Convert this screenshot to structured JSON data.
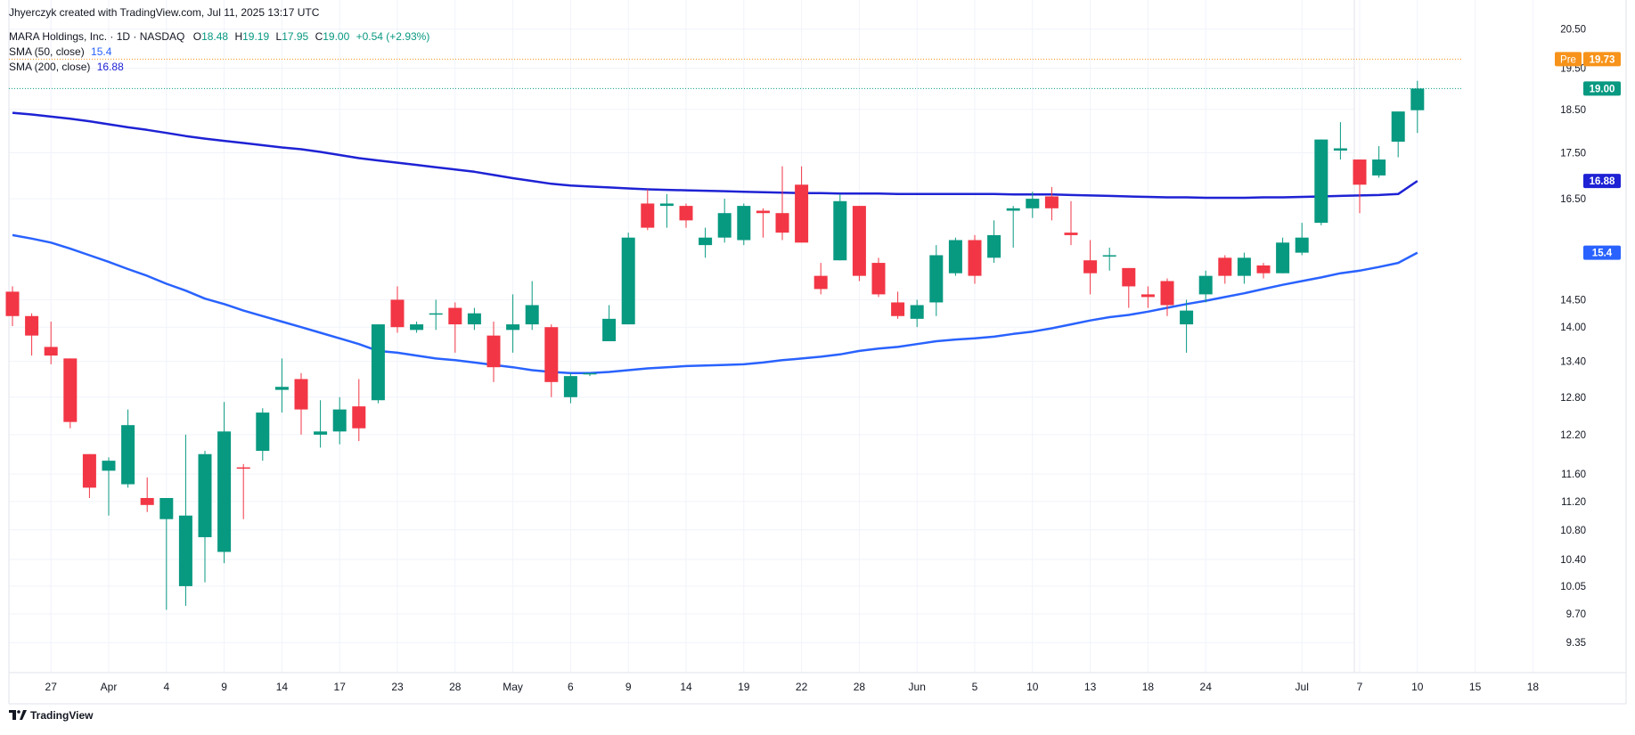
{
  "created_by": "Jhyerczyk created with TradingView.com, Jul 11, 2025 13:17 UTC",
  "footer_brand": "TradingView",
  "colors": {
    "up": "#089981",
    "down": "#f23645",
    "sma50": "#2962ff",
    "sma200": "#1e22d4",
    "pre": "#f7931a",
    "grid": "#f0f3fa",
    "axis_text": "#131722"
  },
  "legend": {
    "symbol_label": "MARA Holdings, Inc. · 1D · NASDAQ",
    "o_label": "O",
    "o_value": "18.48",
    "h_label": "H",
    "h_value": "19.19",
    "l_label": "L",
    "l_value": "17.95",
    "c_label": "C",
    "c_value": "19.00",
    "change": "+0.54 (+2.93%)",
    "sma50_label": "SMA (50, close)",
    "sma50_value": "15.4",
    "sma200_label": "SMA (200, close)",
    "sma200_value": "16.88"
  },
  "badges": {
    "pre_label": "Pre",
    "pre_value": "19.73",
    "last_price": "19.00",
    "sma200": "16.88",
    "sma50": "15.4"
  },
  "chart_data": {
    "type": "candlestick",
    "y_axis_scale": "log",
    "ylim": [
      9.1,
      20.8
    ],
    "y_ticks": [
      "20.50",
      "19.50",
      "18.50",
      "17.50",
      "16.50",
      "14.50",
      "14.00",
      "13.40",
      "12.80",
      "12.20",
      "11.60",
      "11.20",
      "10.80",
      "10.40",
      "10.05",
      "9.70",
      "9.35"
    ],
    "x_ticks": [
      {
        "label": "27",
        "idx": 2
      },
      {
        "label": "Apr",
        "idx": 5
      },
      {
        "label": "4",
        "idx": 8
      },
      {
        "label": "9",
        "idx": 11
      },
      {
        "label": "14",
        "idx": 14
      },
      {
        "label": "17",
        "idx": 17
      },
      {
        "label": "23",
        "idx": 20
      },
      {
        "label": "28",
        "idx": 23
      },
      {
        "label": "May",
        "idx": 26
      },
      {
        "label": "6",
        "idx": 29
      },
      {
        "label": "9",
        "idx": 32
      },
      {
        "label": "14",
        "idx": 35
      },
      {
        "label": "19",
        "idx": 38
      },
      {
        "label": "22",
        "idx": 41
      },
      {
        "label": "28",
        "idx": 44
      },
      {
        "label": "Jun",
        "idx": 47
      },
      {
        "label": "5",
        "idx": 50
      },
      {
        "label": "10",
        "idx": 53
      },
      {
        "label": "13",
        "idx": 56
      },
      {
        "label": "18",
        "idx": 59
      },
      {
        "label": "24",
        "idx": 62
      },
      {
        "label": "Jul",
        "idx": 67
      },
      {
        "label": "7",
        "idx": 70
      },
      {
        "label": "10",
        "idx": 73
      },
      {
        "label": "15",
        "idx": 76
      },
      {
        "label": "18",
        "idx": 79
      }
    ],
    "candles": [
      {
        "o": 14.65,
        "h": 14.75,
        "l": 14.02,
        "c": 14.2
      },
      {
        "o": 14.2,
        "h": 14.25,
        "l": 13.5,
        "c": 13.85
      },
      {
        "o": 13.65,
        "h": 14.1,
        "l": 13.35,
        "c": 13.5
      },
      {
        "o": 13.45,
        "h": 13.45,
        "l": 12.3,
        "c": 12.4
      },
      {
        "o": 11.9,
        "h": 11.9,
        "l": 11.25,
        "c": 11.4
      },
      {
        "o": 11.65,
        "h": 11.85,
        "l": 11.0,
        "c": 11.8
      },
      {
        "o": 11.45,
        "h": 12.6,
        "l": 11.4,
        "c": 12.35
      },
      {
        "o": 11.25,
        "h": 11.55,
        "l": 11.05,
        "c": 11.15
      },
      {
        "o": 10.95,
        "h": 11.25,
        "l": 9.75,
        "c": 11.25
      },
      {
        "o": 10.05,
        "h": 12.2,
        "l": 9.8,
        "c": 11.0
      },
      {
        "o": 10.7,
        "h": 11.95,
        "l": 10.1,
        "c": 11.9
      },
      {
        "o": 10.5,
        "h": 12.72,
        "l": 10.35,
        "c": 12.25
      },
      {
        "o": 11.7,
        "h": 11.75,
        "l": 10.95,
        "c": 11.68
      },
      {
        "o": 11.95,
        "h": 12.62,
        "l": 11.8,
        "c": 12.55
      },
      {
        "o": 12.92,
        "h": 13.45,
        "l": 12.55,
        "c": 12.97
      },
      {
        "o": 13.1,
        "h": 13.2,
        "l": 12.2,
        "c": 12.6
      },
      {
        "o": 12.2,
        "h": 12.75,
        "l": 12.0,
        "c": 12.25
      },
      {
        "o": 12.25,
        "h": 12.8,
        "l": 12.05,
        "c": 12.6
      },
      {
        "o": 12.65,
        "h": 13.1,
        "l": 12.1,
        "c": 12.3
      },
      {
        "o": 12.75,
        "h": 14.05,
        "l": 12.7,
        "c": 14.05
      },
      {
        "o": 14.5,
        "h": 14.75,
        "l": 13.9,
        "c": 14.0
      },
      {
        "o": 13.95,
        "h": 14.1,
        "l": 13.9,
        "c": 14.05
      },
      {
        "o": 14.25,
        "h": 14.5,
        "l": 13.95,
        "c": 14.25
      },
      {
        "o": 14.35,
        "h": 14.45,
        "l": 13.55,
        "c": 14.05
      },
      {
        "o": 14.05,
        "h": 14.35,
        "l": 13.95,
        "c": 14.25
      },
      {
        "o": 13.85,
        "h": 14.1,
        "l": 13.05,
        "c": 13.3
      },
      {
        "o": 13.95,
        "h": 14.6,
        "l": 13.55,
        "c": 14.05
      },
      {
        "o": 14.05,
        "h": 14.85,
        "l": 13.95,
        "c": 14.4
      },
      {
        "o": 14.0,
        "h": 14.05,
        "l": 12.8,
        "c": 13.05
      },
      {
        "o": 12.8,
        "h": 13.2,
        "l": 12.7,
        "c": 13.15
      },
      {
        "o": 13.2,
        "h": 13.2,
        "l": 13.15,
        "c": 13.2
      },
      {
        "o": 13.75,
        "h": 14.4,
        "l": 13.75,
        "c": 14.15
      },
      {
        "o": 14.05,
        "h": 15.8,
        "l": 14.05,
        "c": 15.7
      },
      {
        "o": 16.4,
        "h": 16.7,
        "l": 15.85,
        "c": 15.9
      },
      {
        "o": 16.35,
        "h": 16.6,
        "l": 15.9,
        "c": 16.4
      },
      {
        "o": 16.35,
        "h": 16.4,
        "l": 15.9,
        "c": 16.05
      },
      {
        "o": 15.55,
        "h": 15.9,
        "l": 15.3,
        "c": 15.7
      },
      {
        "o": 15.7,
        "h": 16.5,
        "l": 15.6,
        "c": 16.2
      },
      {
        "o": 15.65,
        "h": 16.4,
        "l": 15.55,
        "c": 16.35
      },
      {
        "o": 16.25,
        "h": 16.3,
        "l": 15.7,
        "c": 16.2
      },
      {
        "o": 16.2,
        "h": 17.2,
        "l": 15.65,
        "c": 15.8
      },
      {
        "o": 16.8,
        "h": 17.2,
        "l": 15.6,
        "c": 15.6
      },
      {
        "o": 14.95,
        "h": 15.2,
        "l": 14.6,
        "c": 14.7
      },
      {
        "o": 15.25,
        "h": 16.6,
        "l": 15.25,
        "c": 16.45
      },
      {
        "o": 16.35,
        "h": 16.35,
        "l": 14.85,
        "c": 14.95
      },
      {
        "o": 15.2,
        "h": 15.3,
        "l": 14.55,
        "c": 14.6
      },
      {
        "o": 14.45,
        "h": 14.65,
        "l": 14.15,
        "c": 14.2
      },
      {
        "o": 14.15,
        "h": 14.5,
        "l": 14.0,
        "c": 14.4
      },
      {
        "o": 14.45,
        "h": 15.55,
        "l": 14.2,
        "c": 15.35
      },
      {
        "o": 15.0,
        "h": 15.7,
        "l": 14.95,
        "c": 15.65
      },
      {
        "o": 15.65,
        "h": 15.75,
        "l": 14.8,
        "c": 14.95
      },
      {
        "o": 15.3,
        "h": 16.05,
        "l": 15.2,
        "c": 15.75
      },
      {
        "o": 16.25,
        "h": 16.35,
        "l": 15.5,
        "c": 16.3
      },
      {
        "o": 16.3,
        "h": 16.65,
        "l": 16.1,
        "c": 16.5
      },
      {
        "o": 16.55,
        "h": 16.75,
        "l": 16.05,
        "c": 16.3
      },
      {
        "o": 15.8,
        "h": 16.45,
        "l": 15.55,
        "c": 15.75
      },
      {
        "o": 15.25,
        "h": 15.65,
        "l": 14.6,
        "c": 15.0
      },
      {
        "o": 15.35,
        "h": 15.5,
        "l": 15.05,
        "c": 15.35
      },
      {
        "o": 15.1,
        "h": 15.1,
        "l": 14.35,
        "c": 14.75
      },
      {
        "o": 14.6,
        "h": 14.75,
        "l": 14.35,
        "c": 14.55
      },
      {
        "o": 14.85,
        "h": 14.9,
        "l": 14.2,
        "c": 14.4
      },
      {
        "o": 14.05,
        "h": 14.5,
        "l": 13.55,
        "c": 14.3
      },
      {
        "o": 14.6,
        "h": 15.05,
        "l": 14.45,
        "c": 14.95
      },
      {
        "o": 15.3,
        "h": 15.35,
        "l": 14.8,
        "c": 14.95
      },
      {
        "o": 14.95,
        "h": 15.4,
        "l": 14.8,
        "c": 15.3
      },
      {
        "o": 15.15,
        "h": 15.2,
        "l": 14.9,
        "c": 15.0
      },
      {
        "o": 15.0,
        "h": 15.7,
        "l": 15.0,
        "c": 15.6
      },
      {
        "o": 15.4,
        "h": 16.0,
        "l": 15.35,
        "c": 15.7
      },
      {
        "o": 16.0,
        "h": 17.8,
        "l": 15.95,
        "c": 17.8
      },
      {
        "o": 17.55,
        "h": 18.2,
        "l": 17.35,
        "c": 17.6
      },
      {
        "o": 17.35,
        "h": 17.35,
        "l": 16.2,
        "c": 16.8
      },
      {
        "o": 17.0,
        "h": 17.65,
        "l": 16.95,
        "c": 17.35
      },
      {
        "o": 17.75,
        "h": 18.45,
        "l": 17.4,
        "c": 18.45
      },
      {
        "o": 18.48,
        "h": 19.19,
        "l": 17.95,
        "c": 19.0
      }
    ],
    "sma50": [
      15.75,
      15.68,
      15.6,
      15.48,
      15.35,
      15.22,
      15.08,
      14.95,
      14.8,
      14.67,
      14.52,
      14.42,
      14.3,
      14.2,
      14.1,
      14.0,
      13.9,
      13.8,
      13.7,
      13.58,
      13.55,
      13.5,
      13.45,
      13.42,
      13.38,
      13.34,
      13.3,
      13.25,
      13.22,
      13.2,
      13.2,
      13.22,
      13.25,
      13.28,
      13.3,
      13.32,
      13.33,
      13.34,
      13.35,
      13.38,
      13.42,
      13.45,
      13.48,
      13.52,
      13.58,
      13.62,
      13.65,
      13.7,
      13.75,
      13.78,
      13.8,
      13.83,
      13.88,
      13.92,
      13.98,
      14.05,
      14.12,
      14.18,
      14.22,
      14.28,
      14.35,
      14.42,
      14.48,
      14.55,
      14.62,
      14.7,
      14.78,
      14.85,
      14.92,
      15.0,
      15.05,
      15.12,
      15.2,
      15.4
    ],
    "sma200": [
      18.42,
      18.38,
      18.33,
      18.28,
      18.22,
      18.15,
      18.08,
      18.02,
      17.95,
      17.88,
      17.82,
      17.77,
      17.72,
      17.67,
      17.62,
      17.58,
      17.52,
      17.45,
      17.38,
      17.33,
      17.28,
      17.23,
      17.18,
      17.13,
      17.08,
      17.01,
      16.94,
      16.88,
      16.82,
      16.78,
      16.76,
      16.74,
      16.72,
      16.7,
      16.69,
      16.68,
      16.67,
      16.66,
      16.65,
      16.64,
      16.63,
      16.62,
      16.62,
      16.61,
      16.61,
      16.61,
      16.6,
      16.6,
      16.6,
      16.6,
      16.6,
      16.6,
      16.59,
      16.59,
      16.59,
      16.58,
      16.57,
      16.56,
      16.55,
      16.54,
      16.53,
      16.53,
      16.52,
      16.52,
      16.52,
      16.53,
      16.53,
      16.54,
      16.55,
      16.56,
      16.57,
      16.58,
      16.6,
      16.88
    ]
  }
}
